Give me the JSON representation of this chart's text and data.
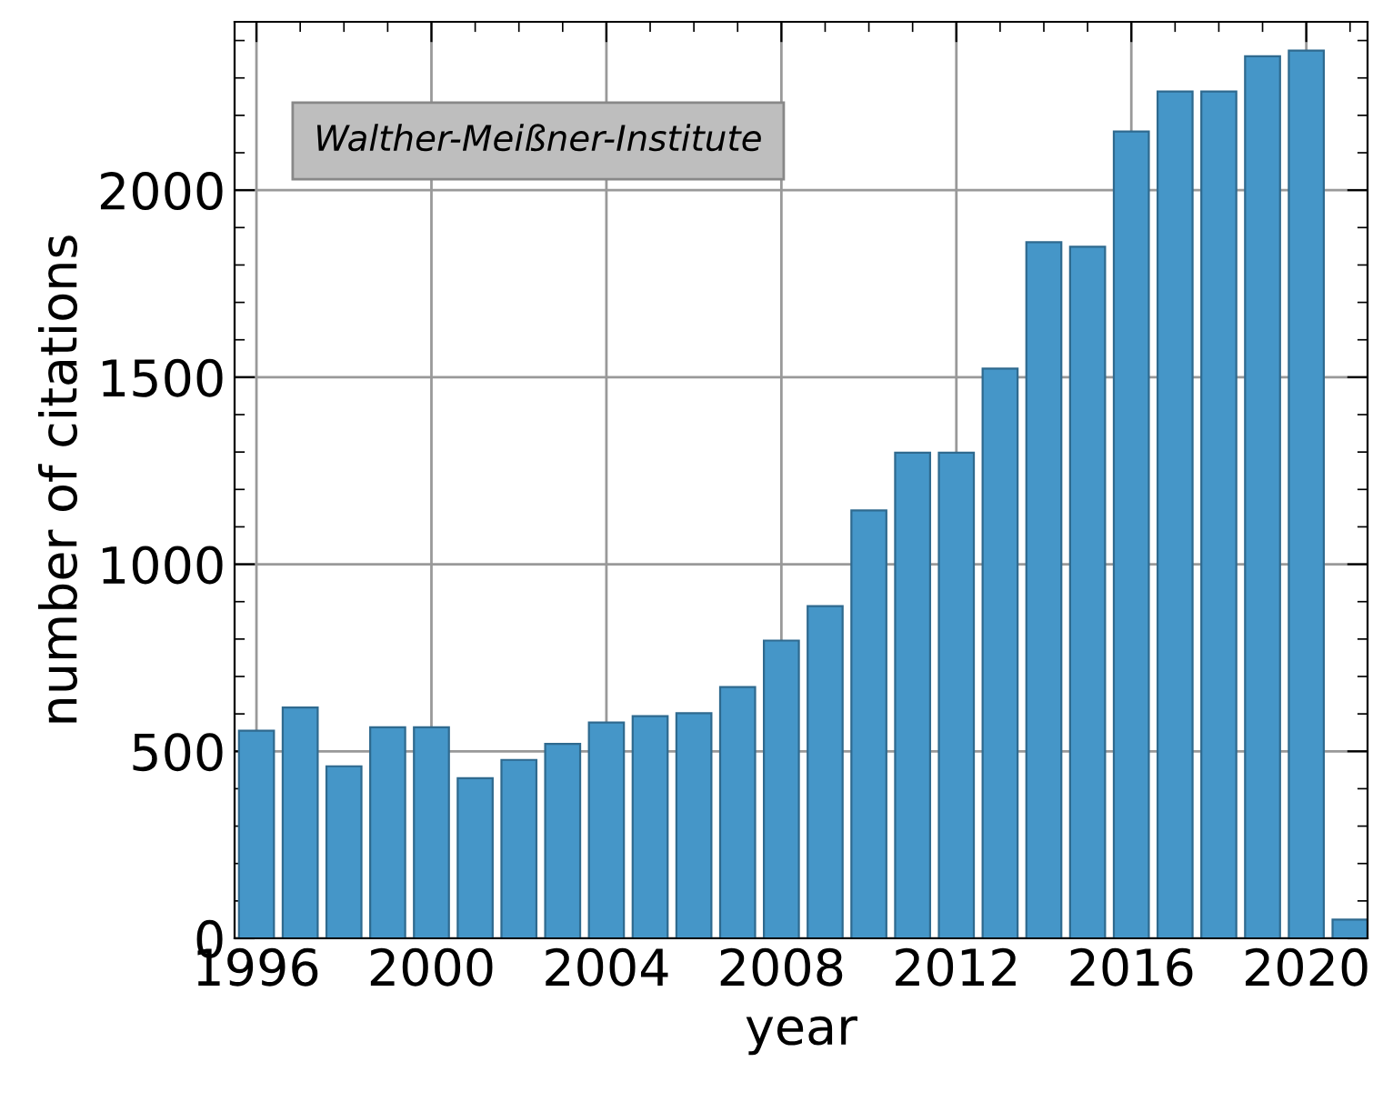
{
  "chart_data": {
    "type": "bar",
    "x": [
      1996,
      1997,
      1998,
      1999,
      2000,
      2001,
      2002,
      2003,
      2004,
      2005,
      2006,
      2007,
      2008,
      2009,
      2010,
      2011,
      2012,
      2013,
      2014,
      2015,
      2016,
      2017,
      2018,
      2019,
      2020,
      2021
    ],
    "values": [
      555,
      617,
      460,
      564,
      564,
      428,
      477,
      520,
      577,
      594,
      602,
      672,
      796,
      888,
      1144,
      1298,
      1298,
      1523,
      1861,
      1849,
      2157,
      2264,
      2264,
      2358,
      2373,
      50
    ],
    "color": "#4596c8",
    "xlabel": "year",
    "ylabel": "number of citations",
    "xlim": [
      1995.5,
      2021.4
    ],
    "xticks": [
      1996,
      2000,
      2004,
      2008,
      2012,
      2016,
      2020
    ],
    "ylim": [
      0,
      2450
    ],
    "yticks": [
      0,
      500,
      1000,
      1500,
      2000
    ],
    "grid": true,
    "annotations": [
      "Walther-Meißner-Institute"
    ]
  }
}
